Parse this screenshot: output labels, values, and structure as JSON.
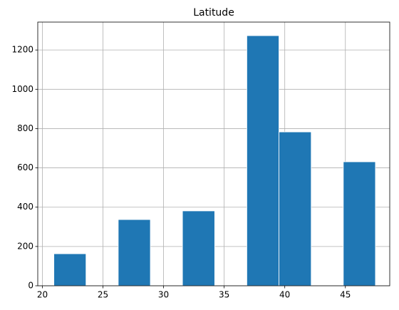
{
  "chart_data": {
    "type": "histogram",
    "title": "Latitude",
    "bins": [
      20.95,
      23.6,
      26.26,
      28.91,
      31.56,
      34.22,
      36.87,
      39.52,
      42.18,
      44.83,
      47.48
    ],
    "values": [
      163,
      0,
      337,
      0,
      381,
      0,
      1273,
      783,
      0,
      631
    ],
    "color": "#1f77b4",
    "xlim": [
      19.62,
      48.66
    ],
    "xticks": [
      20,
      25,
      30,
      35,
      40,
      45
    ],
    "ylim": [
      0,
      1342
    ],
    "yticks": [
      0,
      200,
      400,
      600,
      800,
      1000,
      1200
    ],
    "grid": true
  }
}
